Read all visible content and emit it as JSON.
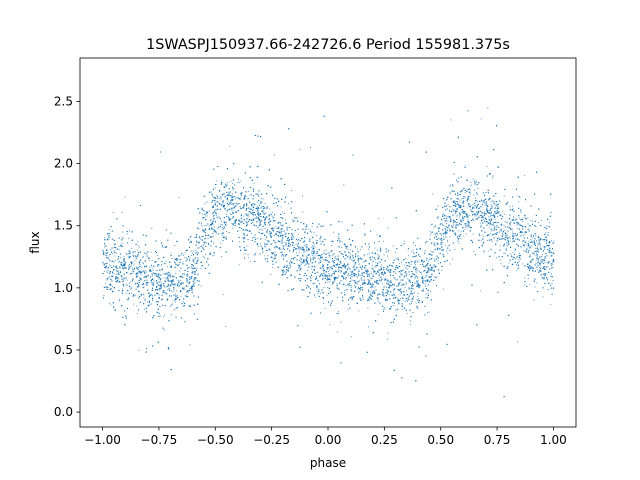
{
  "chart_data": {
    "type": "scatter",
    "title": "1SWASPJ150937.66-242726.6 Period 155981.375s",
    "xlabel": "phase",
    "ylabel": "flux",
    "xlim": [
      -1.1,
      1.1
    ],
    "ylim": [
      -0.12,
      2.85
    ],
    "xticks": [
      "−1.00",
      "−0.75",
      "−0.50",
      "−0.25",
      "0.00",
      "0.25",
      "0.50",
      "0.75",
      "1.00"
    ],
    "xtick_values": [
      -1.0,
      -0.75,
      -0.5,
      -0.25,
      0.0,
      0.25,
      0.5,
      0.75,
      1.0
    ],
    "yticks": [
      "0.0",
      "0.5",
      "1.0",
      "1.5",
      "2.0",
      "2.5"
    ],
    "ytick_values": [
      0.0,
      0.5,
      1.0,
      1.5,
      2.0,
      2.5
    ],
    "grid": false,
    "marker_color": "#1f77b4",
    "series": [
      {
        "x": [
          -1.0,
          -0.95,
          -0.9,
          -0.85,
          -0.8,
          -0.75,
          -0.7,
          -0.65,
          -0.6,
          -0.55,
          -0.5,
          -0.45,
          -0.4,
          -0.35,
          -0.3,
          -0.25,
          -0.2,
          -0.15,
          -0.1,
          -0.05,
          0.0,
          0.05,
          0.1,
          0.15,
          0.2,
          0.25,
          0.3,
          0.35,
          0.4,
          0.45,
          0.5,
          0.55,
          0.6,
          0.65,
          0.7,
          0.75,
          0.8,
          0.85,
          0.9,
          0.95,
          1.0
        ],
        "y": [
          1.2,
          1.15,
          1.12,
          1.1,
          1.07,
          1.05,
          1.05,
          1.06,
          1.15,
          1.45,
          1.6,
          1.63,
          1.62,
          1.58,
          1.52,
          1.45,
          1.38,
          1.31,
          1.24,
          1.2,
          1.17,
          1.15,
          1.12,
          1.1,
          1.08,
          1.06,
          1.05,
          1.05,
          1.06,
          1.15,
          1.45,
          1.6,
          1.63,
          1.62,
          1.58,
          1.52,
          1.45,
          1.38,
          1.31,
          1.25,
          1.2
        ]
      }
    ]
  }
}
